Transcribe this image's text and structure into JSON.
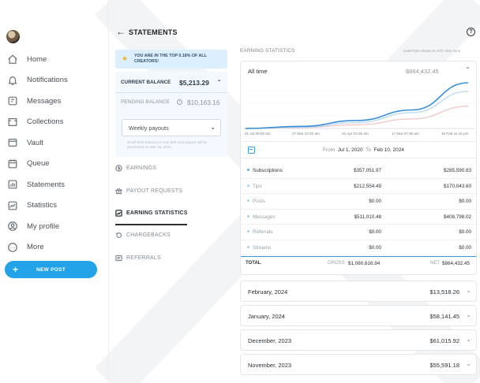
{
  "sidebar": {
    "items": [
      {
        "label": "Home",
        "icon": "home-icon"
      },
      {
        "label": "Notifications",
        "icon": "bell-icon"
      },
      {
        "label": "Messages",
        "icon": "message-icon"
      },
      {
        "label": "Collections",
        "icon": "collections-icon"
      },
      {
        "label": "Vault",
        "icon": "vault-icon"
      },
      {
        "label": "Queue",
        "icon": "calendar-icon"
      },
      {
        "label": "Statements",
        "icon": "statements-icon"
      },
      {
        "label": "Statistics",
        "icon": "statistics-icon"
      },
      {
        "label": "My profile",
        "icon": "profile-icon"
      },
      {
        "label": "More",
        "icon": "more-icon"
      }
    ],
    "new_post": "NEW POST"
  },
  "header": {
    "title": "STATEMENTS"
  },
  "left": {
    "banner": "YOU ARE IN THE TOP 0.18% OF ALL CREATORS!",
    "current_balance_label": "CURRENT BALANCE",
    "current_balance_value": "$5,213.29",
    "pending_label": "PENDING BALANCE",
    "pending_value": "$10,163.16",
    "payout_select": "Weekly payouts",
    "payout_note": "Small print balance is now $20 next payout will be processed on Mar 15, 2024",
    "tabs": [
      {
        "label": "EARNINGS",
        "icon": "dollar-icon"
      },
      {
        "label": "PAYOUT REQUESTS",
        "icon": "bank-icon"
      },
      {
        "label": "EARNING STATISTICS",
        "icon": "chart-icon"
      },
      {
        "label": "CHARGEBACKS",
        "icon": "refund-icon"
      },
      {
        "label": "REFERRALS",
        "icon": "referral-icon"
      }
    ]
  },
  "stats": {
    "title": "EARNING STATISTICS",
    "timezone": "Date/Time shown in UTC time zone",
    "period": "All time",
    "period_value": "$864,432.45",
    "x_ticks": [
      "01 Jul 06:00 am",
      "27 Mar 10:32 am",
      "22 Apr 03:35 am",
      "17 Mar 07:35 am",
      "15 Feb 11:15 pm"
    ],
    "range_from_label": "From",
    "range_from": "Jul 1, 2020",
    "range_to_label": "To",
    "range_to": "Feb 10, 2024",
    "rows": [
      {
        "name": "Subscriptions",
        "gross": "$357,051.97",
        "net": "$285,590.83"
      },
      {
        "name": "Tips",
        "gross": "$212,554.49",
        "net": "$170,043.60"
      },
      {
        "name": "Posts",
        "gross": "$0.00",
        "net": "$0.00"
      },
      {
        "name": "Messages",
        "gross": "$511,010.48",
        "net": "$408,798.02"
      },
      {
        "name": "Referrals",
        "gross": "$0.00",
        "net": "$0.00"
      },
      {
        "name": "Streams",
        "gross": "$0.00",
        "net": "$0.00"
      }
    ],
    "total_label": "TOTAL",
    "gross_label": "GROSS",
    "gross_total": "$1,080,616.94",
    "net_label": "NET",
    "net_total": "$864,432.45"
  },
  "months": [
    {
      "month": "February, 2024",
      "value": "$13,518.26"
    },
    {
      "month": "January, 2024",
      "value": "$58,141.45"
    },
    {
      "month": "December, 2023",
      "value": "$61,015.92"
    },
    {
      "month": "November, 2023",
      "value": "$55,591.18"
    }
  ],
  "chart_data": {
    "type": "line",
    "x": [
      "01 Jul 06:00 am",
      "27 Mar 10:32 am",
      "22 Apr 03:35 am",
      "17 Mar 07:35 am",
      "15 Feb 11:15 pm"
    ],
    "series": [
      {
        "values": [
          0,
          40,
          150,
          350,
          864
        ]
      },
      {
        "values": [
          0,
          25,
          110,
          300,
          700
        ]
      },
      {
        "values": [
          0,
          15,
          70,
          180,
          420
        ]
      }
    ],
    "colors": [
      "#3a8fd8",
      "#b8d8f2",
      "#f0c8c8"
    ]
  }
}
